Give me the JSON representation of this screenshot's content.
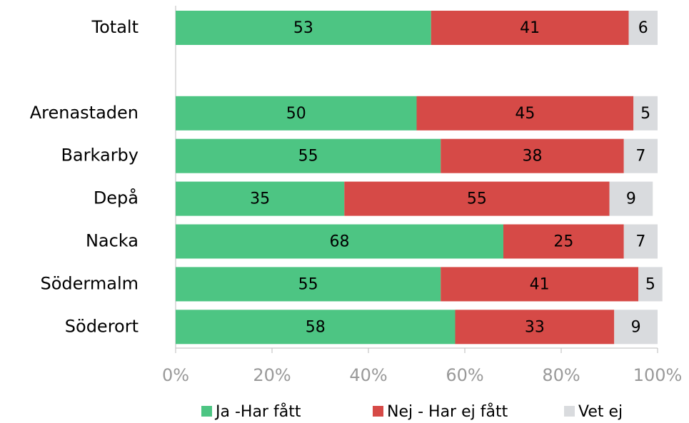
{
  "chart_data": {
    "type": "stacked_barh",
    "categories": [
      "Totalt",
      null,
      "Arenastaden",
      "Barkarby",
      "Depå",
      "Nacka",
      "Södermalm",
      "Söderort"
    ],
    "series": [
      {
        "name": "Ja -Har fått",
        "color": "#4dc583",
        "values": [
          53,
          null,
          50,
          55,
          35,
          68,
          55,
          58
        ]
      },
      {
        "name": "Nej - Har ej fått",
        "color": "#d64a47",
        "values": [
          41,
          null,
          45,
          38,
          55,
          25,
          41,
          33
        ]
      },
      {
        "name": "Vet ej",
        "color": "#d9dbde",
        "values": [
          6,
          null,
          5,
          7,
          9,
          7,
          5,
          9
        ]
      }
    ],
    "xlim": [
      0,
      100
    ],
    "xticks": [
      {
        "value": 0,
        "label": "0%"
      },
      {
        "value": 20,
        "label": "20%"
      },
      {
        "value": 40,
        "label": "40%"
      },
      {
        "value": 60,
        "label": "60%"
      },
      {
        "value": 80,
        "label": "80%"
      },
      {
        "value": 100,
        "label": "100%"
      }
    ],
    "legend": "bottom"
  }
}
